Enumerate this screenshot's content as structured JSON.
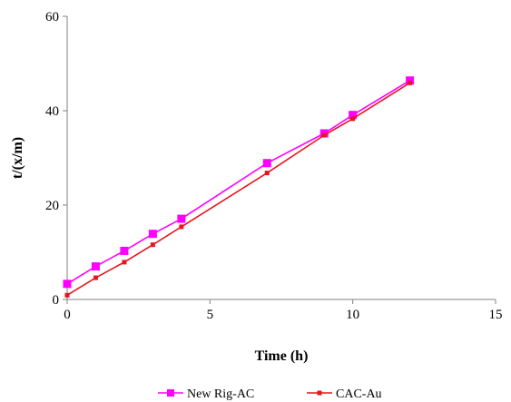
{
  "chart_data": {
    "type": "line",
    "title": "",
    "xlabel": "Time (h)",
    "ylabel": "t/(x/m)",
    "xlim": [
      0,
      15
    ],
    "ylim": [
      0,
      60
    ],
    "xticks": [
      "0",
      "5",
      "10",
      "15"
    ],
    "yticks": [
      "0",
      "20",
      "40",
      "60"
    ],
    "grid": false,
    "legend_position": "bottom",
    "series": [
      {
        "name": "New Rig-AC",
        "color": "#ff00ff",
        "marker": "square",
        "x": [
          0,
          1,
          2,
          3,
          4,
          7,
          9,
          10,
          12
        ],
        "y": [
          3.3,
          7.0,
          10.3,
          13.9,
          17.1,
          28.9,
          35.2,
          39.1,
          46.4
        ]
      },
      {
        "name": "CAC-Au",
        "color": "#e8141e",
        "marker": "small-square",
        "x": [
          0,
          1,
          2,
          3,
          4,
          7,
          9,
          10,
          12
        ],
        "y": [
          0.9,
          4.6,
          7.9,
          11.6,
          15.4,
          26.8,
          34.8,
          38.3,
          45.9
        ]
      }
    ]
  }
}
